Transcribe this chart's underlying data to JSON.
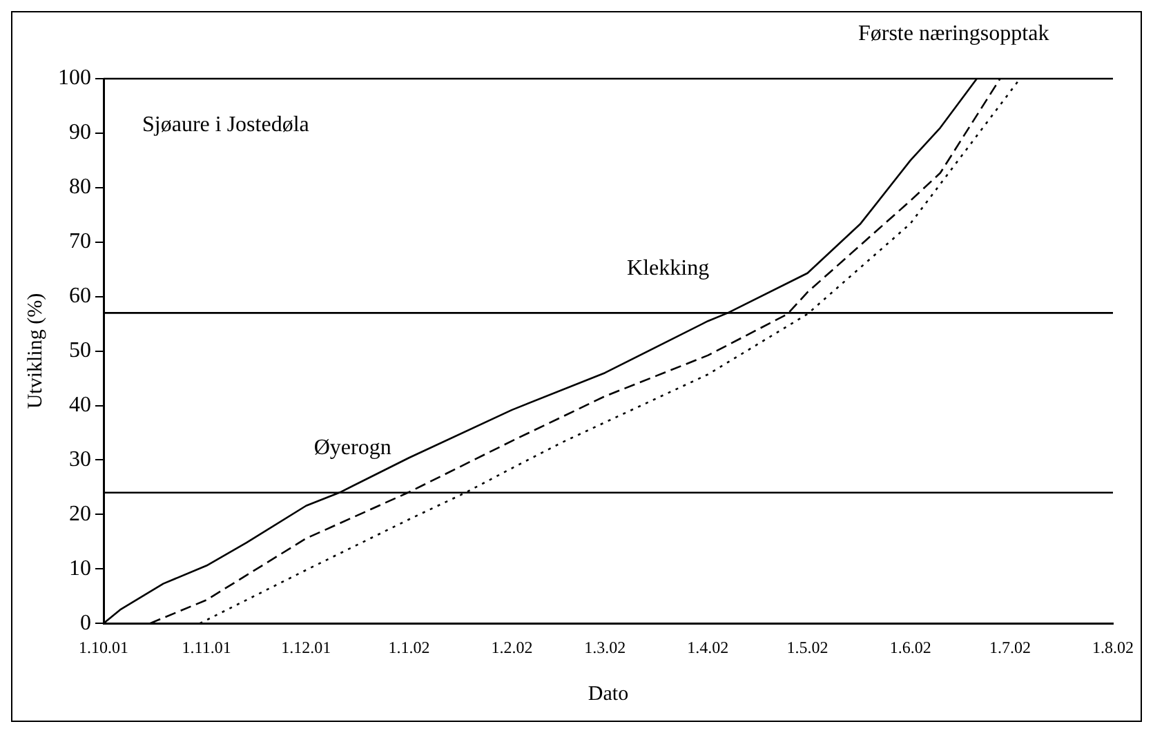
{
  "chart_data": {
    "type": "line",
    "xlabel": "Dato",
    "ylabel": "Utvikling (%)",
    "xlim": [
      "2001-10-01",
      "2002-08-01"
    ],
    "xticks": [
      {
        "value": "2001-10-01",
        "label": "1.10.01"
      },
      {
        "value": "2001-11-01",
        "label": "1.11.01"
      },
      {
        "value": "2001-12-01",
        "label": "1.12.01"
      },
      {
        "value": "2002-01-01",
        "label": "1.1.02"
      },
      {
        "value": "2002-02-01",
        "label": "1.2.02"
      },
      {
        "value": "2002-03-01",
        "label": "1.3.02"
      },
      {
        "value": "2002-04-01",
        "label": "1.4.02"
      },
      {
        "value": "2002-05-01",
        "label": "1.5.02"
      },
      {
        "value": "2002-06-01",
        "label": "1.6.02"
      },
      {
        "value": "2002-07-01",
        "label": "1.7.02"
      },
      {
        "value": "2002-08-01",
        "label": "1.8.02"
      }
    ],
    "ylim": [
      0,
      100
    ],
    "yticks": [
      0,
      10,
      20,
      30,
      40,
      50,
      60,
      70,
      80,
      90,
      100
    ],
    "grid": false,
    "legend": false,
    "marker": "none",
    "series": [
      {
        "color": "#000000",
        "line_style": "solid",
        "x": [
          "2001-10-01",
          "2001-10-06",
          "2001-10-19",
          "2001-11-01",
          "2001-11-13",
          "2001-12-01",
          "2001-12-11",
          "2002-01-01",
          "2002-02-01",
          "2002-03-01",
          "2002-04-01",
          "2002-04-07",
          "2002-05-01",
          "2002-05-17",
          "2002-06-01",
          "2002-06-10",
          "2002-06-21"
        ],
        "values": [
          0,
          2.5,
          7.3,
          10.6,
          14.8,
          21.6,
          24,
          30.4,
          39.2,
          46,
          55.5,
          57,
          64.3,
          73.4,
          85,
          91,
          100
        ]
      },
      {
        "color": "#000000",
        "line_style": "dashed",
        "x": [
          "2001-10-15",
          "2001-11-01",
          "2001-12-01",
          "2002-01-01",
          "2002-02-01",
          "2002-03-01",
          "2002-04-01",
          "2002-04-25",
          "2002-05-01",
          "2002-06-01",
          "2002-06-10",
          "2002-06-28"
        ],
        "values": [
          0,
          4.3,
          15.6,
          24.1,
          33.5,
          41.7,
          49.2,
          56.8,
          60.8,
          77.6,
          82.7,
          100
        ]
      },
      {
        "color": "#000000",
        "line_style": "dotted",
        "x": [
          "2001-10-30",
          "2001-12-01",
          "2002-01-01",
          "2002-01-18",
          "2002-02-01",
          "2002-02-16",
          "2002-03-01",
          "2002-04-01",
          "2002-05-01",
          "2002-06-01",
          "2002-07-04"
        ],
        "values": [
          0,
          9.8,
          19.1,
          24,
          28.5,
          33.2,
          36.9,
          45.7,
          56.8,
          73.4,
          100
        ]
      }
    ],
    "ref_lines": [
      {
        "axis": "y",
        "value": 24,
        "color": "#000000"
      },
      {
        "axis": "y",
        "value": 57,
        "color": "#000000"
      },
      {
        "axis": "y",
        "value": 100,
        "color": "#000000"
      }
    ],
    "annotations": [
      "Sjøaure i Jostedøla",
      {
        "text": "Øyerogn",
        "x": "2001-12-15",
        "y": 24
      },
      {
        "text": "Klekking",
        "x": "2002-03-20",
        "y": 57
      },
      {
        "text": "Første næringsopptak",
        "x": "2002-06-14",
        "y": 100
      }
    ]
  }
}
